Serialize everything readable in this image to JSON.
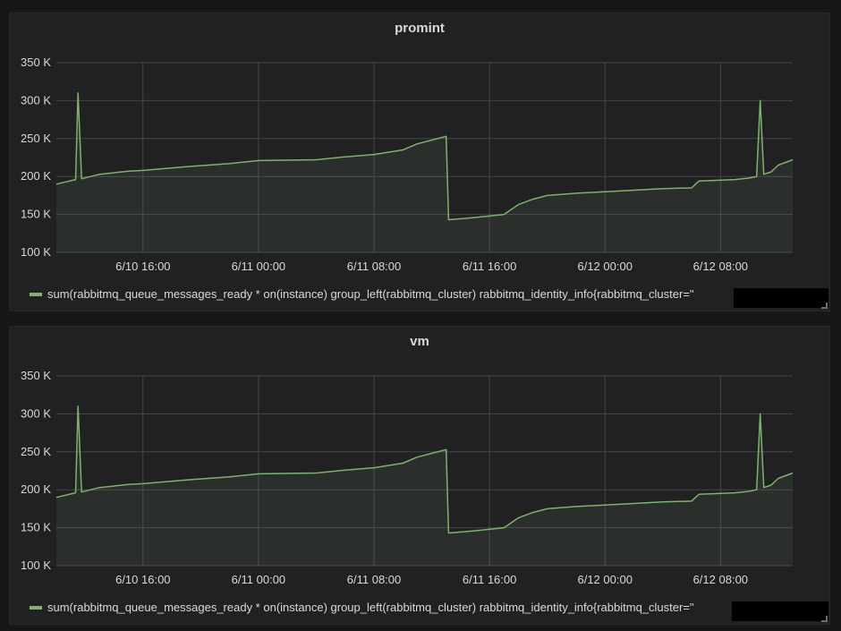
{
  "chart_data": [
    {
      "type": "area",
      "title": "promint",
      "x_start": "6/10 10:00",
      "x_end": "6/12 13:00",
      "x_ticks": [
        "6/10 16:00",
        "6/11 00:00",
        "6/11 08:00",
        "6/11 16:00",
        "6/12 00:00",
        "6/12 08:00"
      ],
      "y_ticks": [
        "100 K",
        "150 K",
        "200 K",
        "250 K",
        "300 K",
        "350 K"
      ],
      "ylim": [
        100000,
        350000
      ],
      "grid": true,
      "legend_position": "bottom-left",
      "series": [
        {
          "name": "sum(rabbitmq_queue_messages_ready * on(instance) group_left(rabbitmq_cluster) rabbitmq_identity_info{rabbitmq_cluster=\"",
          "color": "#7eb26d",
          "t": [
            "6/10 10:00",
            "6/10 11:20",
            "6/10 11:30",
            "6/10 11:45",
            "6/10 13:00",
            "6/10 15:00",
            "6/10 16:00",
            "6/10 19:00",
            "6/10 22:00",
            "6/11 00:00",
            "6/11 04:00",
            "6/11 06:00",
            "6/11 08:00",
            "6/11 10:00",
            "6/11 11:00",
            "6/11 12:00",
            "6/11 13:00",
            "6/11 13:10",
            "6/11 15:00",
            "6/11 17:00",
            "6/11 18:00",
            "6/11 19:00",
            "6/11 20:00",
            "6/11 22:00",
            "6/12 00:00",
            "6/12 04:00",
            "6/12 06:00",
            "6/12 06:30",
            "6/12 09:00",
            "6/12 10:00",
            "6/12 10:30",
            "6/12 10:45",
            "6/12 11:00",
            "6/12 11:30",
            "6/12 12:00",
            "6/12 13:00"
          ],
          "values": [
            190000,
            196000,
            310000,
            197000,
            203000,
            207000,
            208000,
            213000,
            217000,
            221000,
            222000,
            226000,
            229000,
            235000,
            243000,
            248000,
            253000,
            143000,
            146000,
            150000,
            163000,
            170000,
            175000,
            178000,
            180000,
            184000,
            185000,
            194000,
            196000,
            198000,
            200000,
            300000,
            203000,
            206000,
            215000,
            222000
          ]
        }
      ]
    },
    {
      "type": "area",
      "title": "vm",
      "x_start": "6/10 10:00",
      "x_end": "6/12 13:00",
      "x_ticks": [
        "6/10 16:00",
        "6/11 00:00",
        "6/11 08:00",
        "6/11 16:00",
        "6/12 00:00",
        "6/12 08:00"
      ],
      "y_ticks": [
        "100 K",
        "150 K",
        "200 K",
        "250 K",
        "300 K",
        "350 K"
      ],
      "ylim": [
        100000,
        350000
      ],
      "grid": true,
      "legend_position": "bottom-left",
      "series": [
        {
          "name": "sum(rabbitmq_queue_messages_ready * on(instance) group_left(rabbitmq_cluster) rabbitmq_identity_info{rabbitmq_cluster=\"",
          "color": "#7eb26d",
          "t": [
            "6/10 10:00",
            "6/10 11:20",
            "6/10 11:30",
            "6/10 11:45",
            "6/10 13:00",
            "6/10 15:00",
            "6/10 16:00",
            "6/10 19:00",
            "6/10 22:00",
            "6/11 00:00",
            "6/11 04:00",
            "6/11 06:00",
            "6/11 08:00",
            "6/11 10:00",
            "6/11 11:00",
            "6/11 12:00",
            "6/11 13:00",
            "6/11 13:10",
            "6/11 15:00",
            "6/11 17:00",
            "6/11 18:00",
            "6/11 19:00",
            "6/11 20:00",
            "6/11 22:00",
            "6/12 00:00",
            "6/12 04:00",
            "6/12 06:00",
            "6/12 06:30",
            "6/12 09:00",
            "6/12 10:00",
            "6/12 10:30",
            "6/12 10:45",
            "6/12 11:00",
            "6/12 11:30",
            "6/12 12:00",
            "6/12 13:00"
          ],
          "values": [
            190000,
            196000,
            310000,
            197000,
            203000,
            207000,
            208000,
            213000,
            217000,
            221000,
            222000,
            226000,
            229000,
            235000,
            243000,
            248000,
            253000,
            143000,
            146000,
            150000,
            163000,
            170000,
            175000,
            178000,
            180000,
            184000,
            185000,
            194000,
            196000,
            198000,
            200000,
            300000,
            203000,
            206000,
            215000,
            222000
          ]
        }
      ]
    }
  ]
}
